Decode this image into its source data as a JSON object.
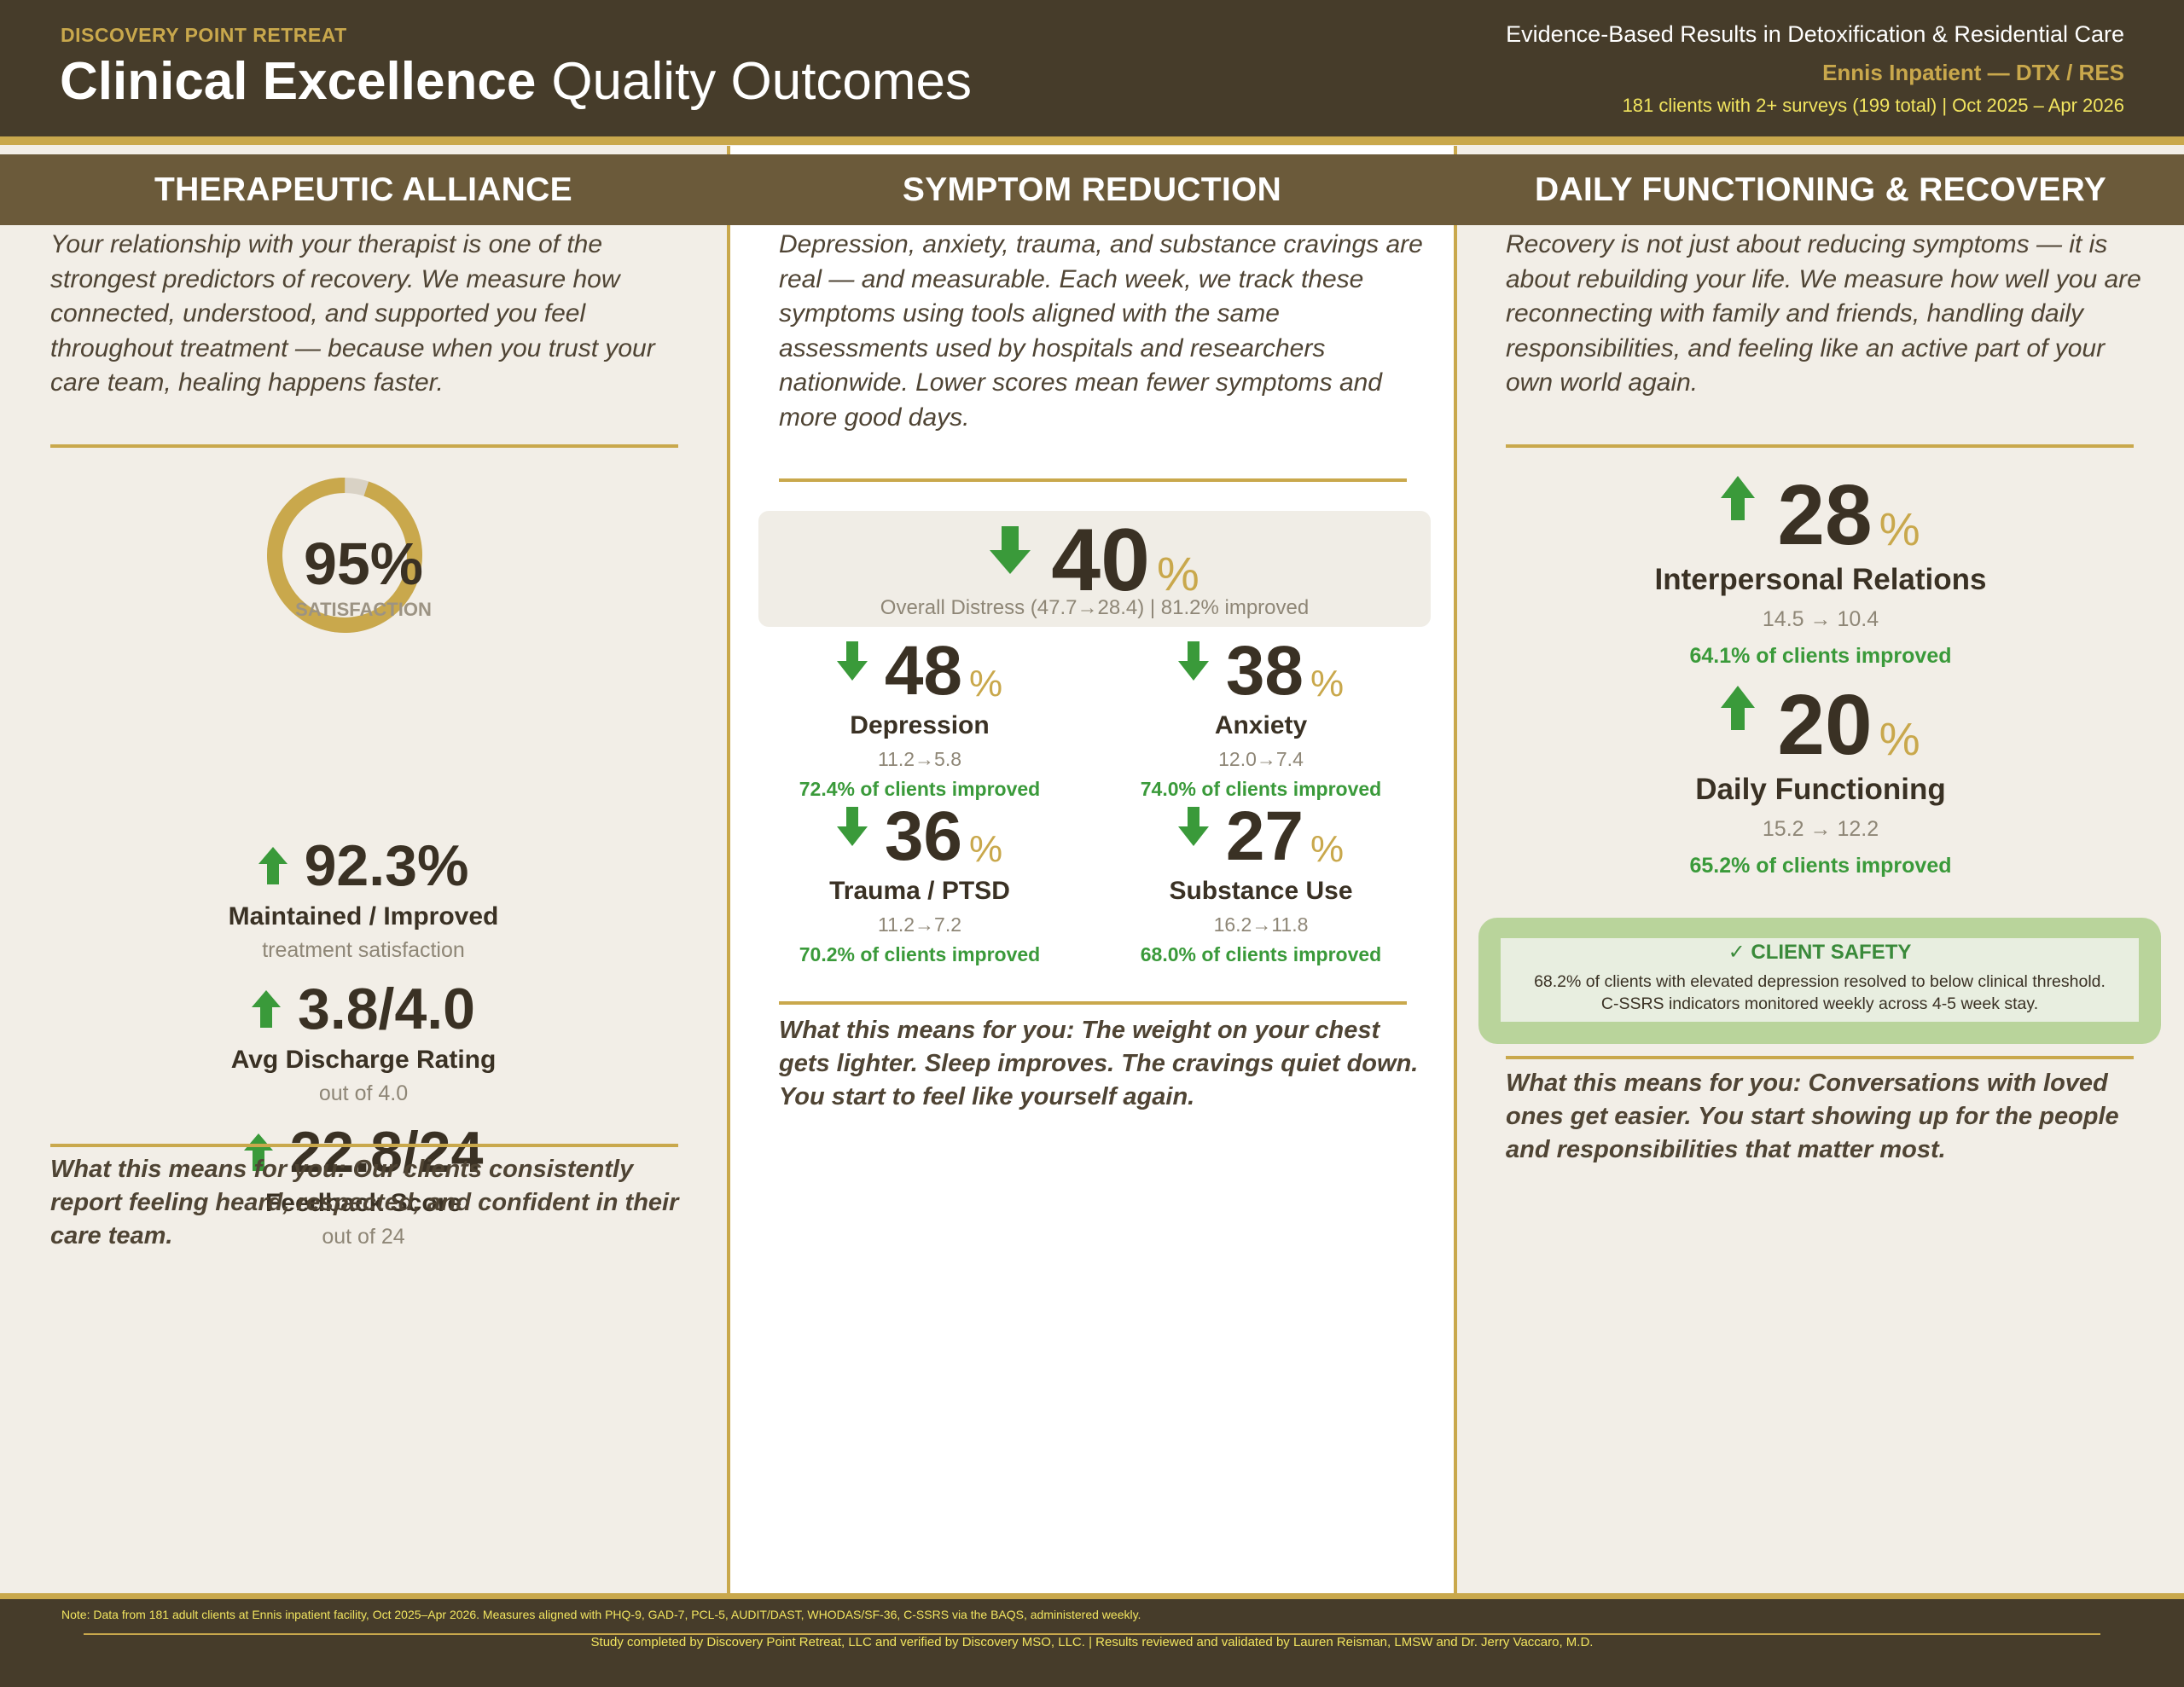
{
  "header": {
    "brand": "DISCOVERY POINT RETREAT",
    "title_bold": "Clinical Excellence",
    "title_light": "Quality Outcomes",
    "tagline": "Evidence-Based Results in Detoxification & Residential Care",
    "facility": "Ennis Inpatient — DTX / RES",
    "sample": "181 clients with 2+ surveys (199 total)  |  Oct 2025 – Apr 2026"
  },
  "alliance": {
    "heading": "THERAPEUTIC ALLIANCE",
    "intro": "Your relationship with your therapist is one of the strongest predictors of recovery. We measure how connected, understood, and supported you feel throughout treatment — because when you trust your care team, healing happens faster.",
    "satisfaction": {
      "value": "95%",
      "label": "SATISFACTION",
      "fraction": 0.95
    },
    "metrics": [
      {
        "value": "92.3%",
        "name": "Maintained / Improved",
        "sub": "treatment satisfaction"
      },
      {
        "value": "3.8/4.0",
        "name": "Avg Discharge Rating",
        "sub": "out of 4.0"
      },
      {
        "value": "22.8/24",
        "name": "Feedback Score",
        "sub": "out of 24"
      }
    ],
    "outro": "What this means for you: Our clients consistently report feeling heard, respected, and confident in their care team."
  },
  "symptoms": {
    "heading": "SYMPTOM REDUCTION",
    "intro": "Depression, anxiety, trauma, and substance cravings are real — and measurable. Each week, we track these symptoms using tools aligned with the same assessments used by hospitals and researchers nationwide. Lower scores mean fewer symptoms and more good days.",
    "overall": {
      "value": "40",
      "sign": "%",
      "sub": "Overall Distress (47.7→28.4) | 81.2% improved"
    },
    "items": [
      {
        "value": "48",
        "sign": "%",
        "name": "Depression",
        "range": "11.2→5.8",
        "improved": "72.4% of clients improved"
      },
      {
        "value": "38",
        "sign": "%",
        "name": "Anxiety",
        "range": "12.0→7.4",
        "improved": "74.0% of clients improved"
      },
      {
        "value": "36",
        "sign": "%",
        "name": "Trauma / PTSD",
        "range": "11.2→7.2",
        "improved": "70.2% of clients improved"
      },
      {
        "value": "27",
        "sign": "%",
        "name": "Substance Use",
        "range": "16.2→11.8",
        "improved": "68.0% of clients improved"
      }
    ],
    "outro": "What this means for you: The weight on your chest gets lighter. Sleep improves. The cravings quiet down. You start to feel like yourself again."
  },
  "functioning": {
    "heading": "DAILY FUNCTIONING & RECOVERY",
    "intro": "Recovery is not just about reducing symptoms — it is about rebuilding your life. We measure how well you are reconnecting with family and friends, handling daily responsibilities, and feeling like an active part of your own world again.",
    "items": [
      {
        "value": "28",
        "sign": "%",
        "name": "Interpersonal Relations",
        "range": "14.5 → 10.4",
        "improved": "64.1% of clients improved"
      },
      {
        "value": "20",
        "sign": "%",
        "name": "Daily Functioning",
        "range": "15.2 → 12.2",
        "improved": "65.2% of clients improved"
      }
    ],
    "safety": {
      "title": "✓  CLIENT SAFETY",
      "line1": "68.2% of clients with elevated depression resolved to below clinical threshold.",
      "line2": "C-SSRS indicators monitored weekly across 4-5 week stay."
    },
    "outro": "What this means for you: Conversations with loved ones get easier. You start showing up for the people and responsibilities that matter most."
  },
  "footer": {
    "note": "Note: Data from 181 adult clients at Ennis inpatient facility, Oct 2025–Apr 2026. Measures aligned with PHQ-9, GAD-7, PCL-5, AUDIT/DAST, WHODAS/SF-36, C-SSRS via the BAQS, administered weekly.",
    "credit": "Study completed by Discovery Point Retreat, LLC and verified by Discovery MSO, LLC.  |  Results reviewed and validated by Lauren Reisman, LMSW and Dr. Jerry Vaccaro, M.D."
  },
  "colors": {
    "header_bg": "#463c2a",
    "gold": "#c9a84c",
    "column_header": "#6b5a3a",
    "improve_green": "#3a9a3a",
    "safety_green": "#b9d49b"
  },
  "icons": {
    "increase": "arrow-up-icon",
    "decrease": "arrow-down-icon",
    "check": "check-icon"
  }
}
